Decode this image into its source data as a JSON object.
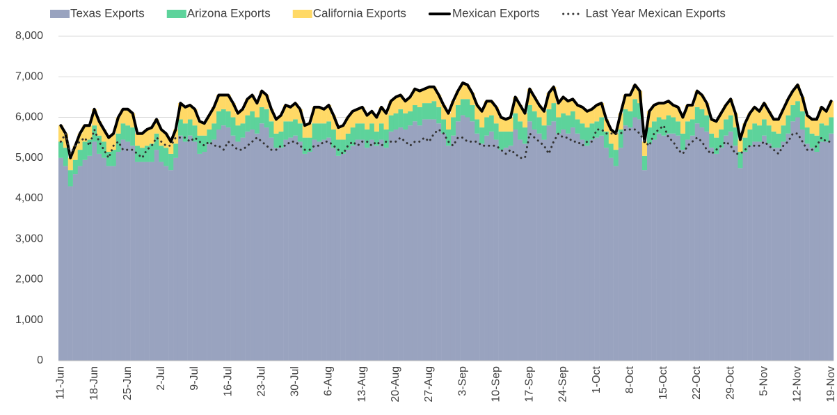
{
  "chart_data": {
    "type": "bar",
    "stacked": true,
    "legend": "top",
    "grid": true,
    "ylim": [
      0,
      8000
    ],
    "yticks": [
      0,
      {
        "value": 1000,
        "label": "1,000"
      },
      {
        "value": 2000,
        "label": "2,000"
      },
      {
        "value": 3000,
        "label": "3,000"
      },
      {
        "value": 4000,
        "label": "4,000"
      },
      {
        "value": 5000,
        "label": "5,000"
      },
      {
        "value": 6000,
        "label": "6,000"
      },
      {
        "value": 7000,
        "label": "7,000"
      },
      {
        "value": 8000,
        "label": "8,000"
      }
    ],
    "categories": [
      "11-Jun",
      null,
      null,
      null,
      null,
      null,
      null,
      "18-Jun",
      null,
      null,
      null,
      null,
      null,
      null,
      "25-Jun",
      null,
      null,
      null,
      null,
      null,
      null,
      "2-Jul",
      null,
      null,
      null,
      null,
      null,
      null,
      "9-Jul",
      null,
      null,
      null,
      null,
      null,
      null,
      "16-Jul",
      null,
      null,
      null,
      null,
      null,
      null,
      "23-Jul",
      null,
      null,
      null,
      null,
      null,
      null,
      "30-Jul",
      null,
      null,
      null,
      null,
      null,
      null,
      "6-Aug",
      null,
      null,
      null,
      null,
      null,
      null,
      "13-Aug",
      null,
      null,
      null,
      null,
      null,
      null,
      "20-Aug",
      null,
      null,
      null,
      null,
      null,
      null,
      "27-Aug",
      null,
      null,
      null,
      null,
      null,
      null,
      "3-Sep",
      null,
      null,
      null,
      null,
      null,
      null,
      "10-Sep",
      null,
      null,
      null,
      null,
      null,
      null,
      "17-Sep",
      null,
      null,
      null,
      null,
      null,
      null,
      "24-Sep",
      null,
      null,
      null,
      null,
      null,
      null,
      "1-Oct",
      null,
      null,
      null,
      null,
      null,
      null,
      "8-Oct",
      null,
      null,
      null,
      null,
      null,
      null,
      "15-Oct",
      null,
      null,
      null,
      null,
      null,
      null,
      "22-Oct",
      null,
      null,
      null,
      null,
      null,
      null,
      "29-Oct",
      null,
      null,
      null,
      null,
      null,
      null,
      "5-Nov",
      null,
      null,
      null,
      null,
      null,
      null,
      "12-Nov",
      null,
      null,
      null,
      null,
      null,
      null,
      "19-Nov"
    ],
    "series": [
      {
        "name": "Texas Exports",
        "type": "bar",
        "color": "#99a3bf",
        "values": [
          5000,
          4800,
          4300,
          4600,
          4800,
          4950,
          5050,
          5400,
          5100,
          5000,
          4800,
          4800,
          5150,
          5450,
          5400,
          5300,
          4900,
          4900,
          4900,
          4900,
          5200,
          4900,
          4800,
          4700,
          5000,
          5550,
          5400,
          5550,
          5400,
          5100,
          5150,
          5350,
          5450,
          5700,
          5800,
          5750,
          5550,
          5400,
          5500,
          5650,
          5700,
          5600,
          5850,
          5750,
          5500,
          5250,
          5250,
          5450,
          5500,
          5550,
          5400,
          5100,
          5150,
          5450,
          5400,
          5450,
          5500,
          5250,
          5050,
          5100,
          5200,
          5300,
          5450,
          5450,
          5250,
          5450,
          5300,
          5450,
          5250,
          5650,
          5700,
          5750,
          5700,
          5800,
          5900,
          5800,
          5950,
          5950,
          5950,
          5850,
          5600,
          5300,
          5550,
          5900,
          6050,
          6000,
          5900,
          5600,
          5350,
          5550,
          5650,
          5450,
          5200,
          5250,
          5300,
          5700,
          5450,
          5350,
          5900,
          5700,
          5600,
          5450,
          5800,
          5900,
          5600,
          5700,
          5600,
          5750,
          5600,
          5450,
          5300,
          5450,
          5500,
          5550,
          5250,
          5000,
          4800,
          5250,
          5800,
          5750,
          6000,
          5950,
          4700,
          5350,
          5450,
          5600,
          5550,
          5600,
          5600,
          5550,
          5200,
          5450,
          5550,
          5850,
          5750,
          5650,
          5250,
          5100,
          5250,
          5550,
          5650,
          5300,
          4750,
          5150,
          5300,
          5400,
          5400,
          5550,
          5350,
          5250,
          5250,
          5400,
          5600,
          5900,
          6000,
          5700,
          5350,
          5250,
          5150,
          5400,
          5400,
          5600
        ]
      },
      {
        "name": "Arizona Exports",
        "type": "bar",
        "color": "#5dd39b",
        "values": [
          400,
          450,
          400,
          350,
          400,
          450,
          400,
          400,
          450,
          400,
          350,
          400,
          450,
          400,
          400,
          450,
          400,
          350,
          400,
          450,
          400,
          400,
          450,
          400,
          350,
          400,
          450,
          400,
          400,
          450,
          400,
          350,
          400,
          450,
          400,
          400,
          450,
          400,
          350,
          400,
          450,
          400,
          400,
          450,
          400,
          350,
          400,
          450,
          400,
          400,
          450,
          400,
          350,
          400,
          450,
          400,
          400,
          450,
          400,
          350,
          400,
          450,
          400,
          400,
          450,
          400,
          350,
          400,
          450,
          400,
          400,
          450,
          400,
          350,
          400,
          450,
          400,
          400,
          450,
          400,
          350,
          400,
          450,
          400,
          400,
          450,
          400,
          350,
          400,
          450,
          400,
          400,
          450,
          400,
          350,
          400,
          450,
          400,
          400,
          450,
          400,
          350,
          400,
          450,
          400,
          400,
          450,
          400,
          350,
          400,
          450,
          400,
          400,
          450,
          400,
          350,
          400,
          450,
          400,
          400,
          450,
          400,
          350,
          400,
          450,
          400,
          400,
          450,
          400,
          350,
          400,
          450,
          400,
          400,
          450,
          400,
          350,
          400,
          450,
          400,
          400,
          450,
          400,
          350,
          400,
          450,
          400,
          400,
          450,
          400,
          350,
          400,
          450,
          400,
          400,
          450,
          400,
          350,
          400,
          450,
          400,
          400
        ]
      },
      {
        "name": "California Exports",
        "type": "bar",
        "color": "#ffd966",
        "values": [
          400,
          350,
          300,
          350,
          400,
          400,
          350,
          400,
          350,
          300,
          350,
          400,
          400,
          350,
          400,
          350,
          300,
          350,
          400,
          400,
          350,
          400,
          350,
          300,
          350,
          400,
          400,
          350,
          400,
          350,
          300,
          350,
          400,
          400,
          350,
          400,
          350,
          300,
          350,
          400,
          400,
          350,
          400,
          350,
          300,
          350,
          400,
          400,
          350,
          400,
          350,
          300,
          350,
          400,
          400,
          350,
          400,
          350,
          300,
          350,
          400,
          400,
          350,
          400,
          350,
          300,
          350,
          400,
          400,
          350,
          400,
          350,
          300,
          350,
          400,
          400,
          350,
          400,
          350,
          300,
          350,
          400,
          400,
          350,
          400,
          350,
          300,
          350,
          400,
          400,
          350,
          400,
          350,
          300,
          350,
          400,
          400,
          350,
          400,
          350,
          300,
          350,
          400,
          400,
          350,
          400,
          350,
          300,
          350,
          400,
          400,
          350,
          400,
          350,
          300,
          350,
          400,
          400,
          350,
          400,
          350,
          300,
          350,
          400,
          400,
          350,
          400,
          350,
          300,
          350,
          400,
          400,
          350,
          400,
          350,
          300,
          350,
          400,
          400,
          350,
          400,
          350,
          300,
          350,
          400,
          400,
          350,
          400,
          350,
          300,
          350,
          400,
          400,
          350,
          400,
          350,
          300,
          350,
          400,
          400,
          350,
          400
        ]
      },
      {
        "name": "Mexican Exports",
        "type": "line",
        "line_style": "solid",
        "color": "#000000",
        "values": [
          5800,
          5600,
          5000,
          5300,
          5600,
          5800,
          5800,
          6200,
          5900,
          5700,
          5500,
          5600,
          6000,
          6200,
          6200,
          6100,
          5600,
          5600,
          5700,
          5750,
          5950,
          5700,
          5600,
          5400,
          5700,
          6350,
          6250,
          6300,
          6200,
          5900,
          5850,
          6050,
          6250,
          6550,
          6550,
          6550,
          6350,
          6100,
          6200,
          6450,
          6550,
          6350,
          6650,
          6550,
          6200,
          5950,
          6050,
          6300,
          6250,
          6350,
          6200,
          5800,
          5850,
          6250,
          6250,
          6200,
          6300,
          6050,
          5750,
          5800,
          6000,
          6150,
          6200,
          6250,
          6050,
          6150,
          6000,
          6250,
          6100,
          6400,
          6500,
          6550,
          6400,
          6500,
          6700,
          6650,
          6700,
          6750,
          6750,
          6550,
          6300,
          6100,
          6400,
          6650,
          6850,
          6800,
          6600,
          6300,
          6150,
          6400,
          6400,
          6250,
          6000,
          5950,
          6000,
          6500,
          6300,
          6100,
          6700,
          6500,
          6300,
          6150,
          6600,
          6750,
          6350,
          6500,
          6400,
          6450,
          6300,
          6250,
          6150,
          6200,
          6300,
          6350,
          5950,
          5700,
          5600,
          6100,
          6550,
          6550,
          6800,
          6650,
          5400,
          6150,
          6300,
          6350,
          6350,
          6400,
          6300,
          6250,
          6000,
          6300,
          6300,
          6650,
          6550,
          6350,
          5950,
          5900,
          6100,
          6300,
          6450,
          6100,
          5450,
          5850,
          6100,
          6250,
          6150,
          6350,
          6150,
          5950,
          5950,
          6200,
          6450,
          6650,
          6800,
          6500,
          6050,
          5950,
          5950,
          6250,
          6150,
          6400
        ]
      },
      {
        "name": "Last Year Mexican Exports",
        "type": "line",
        "line_style": "dotted",
        "color": "#333333",
        "values": [
          5400,
          5600,
          5100,
          5300,
          5400,
          5500,
          5300,
          5700,
          5400,
          5200,
          5000,
          5300,
          5400,
          5200,
          5200,
          5200,
          5100,
          5000,
          5200,
          5300,
          5500,
          5400,
          5300,
          5300,
          5500,
          5500,
          5500,
          5400,
          5500,
          5400,
          5300,
          5400,
          5300,
          5300,
          5200,
          5400,
          5300,
          5200,
          5200,
          5300,
          5400,
          5500,
          5400,
          5300,
          5200,
          5200,
          5300,
          5300,
          5400,
          5400,
          5300,
          5200,
          5200,
          5300,
          5300,
          5400,
          5400,
          5300,
          5200,
          5100,
          5300,
          5400,
          5300,
          5400,
          5400,
          5300,
          5400,
          5300,
          5400,
          5400,
          5400,
          5500,
          5400,
          5300,
          5400,
          5400,
          5500,
          5400,
          5600,
          5700,
          5600,
          5400,
          5300,
          5500,
          5500,
          5400,
          5400,
          5400,
          5300,
          5300,
          5300,
          5300,
          5200,
          5100,
          5200,
          5100,
          5000,
          5000,
          5600,
          5500,
          5400,
          5300,
          5100,
          5400,
          5600,
          5500,
          5500,
          5400,
          5400,
          5300,
          5400,
          5400,
          5700,
          5700,
          5600,
          5600,
          5600,
          5600,
          5700,
          5700,
          5700,
          5600,
          5400,
          5300,
          5600,
          5700,
          5800,
          5500,
          5400,
          5200,
          5100,
          5300,
          5400,
          5500,
          5400,
          5200,
          5100,
          5200,
          5300,
          5400,
          5300,
          5100,
          5100,
          5200,
          5300,
          5300,
          5300,
          5400,
          5300,
          5200,
          5100,
          5300,
          5400,
          5600,
          5600,
          5400,
          5200,
          5200,
          5300,
          5500,
          5400,
          5400
        ]
      }
    ]
  }
}
